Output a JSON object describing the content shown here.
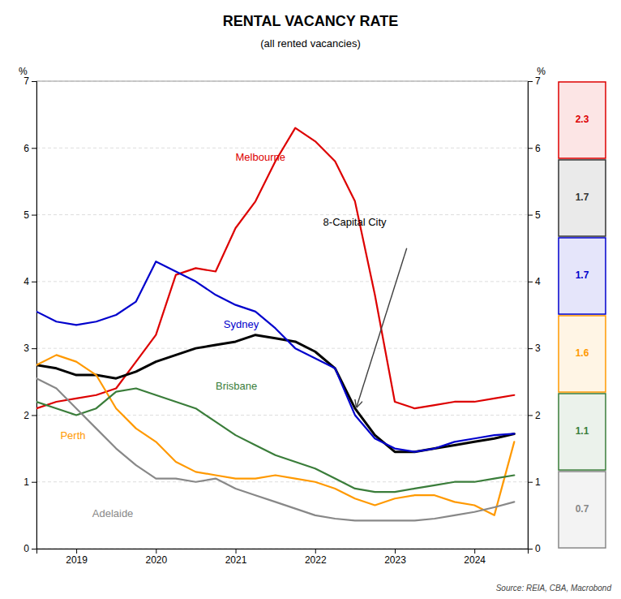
{
  "chart_data": {
    "type": "line",
    "title": "RENTAL VACANCY RATE",
    "subtitle": "(all rented vacancies)",
    "source": "Source: REIA, CBA, Macrobond",
    "ylabel": "%",
    "y2label": "%",
    "x": [
      2018.5,
      2018.75,
      2019.0,
      2019.25,
      2019.5,
      2019.75,
      2020.0,
      2020.25,
      2020.5,
      2020.75,
      2021.0,
      2021.25,
      2021.5,
      2021.75,
      2022.0,
      2022.25,
      2022.5,
      2022.75,
      2023.0,
      2023.25,
      2023.5,
      2023.75,
      2024.0,
      2024.25,
      2024.5
    ],
    "xlim": [
      2018.5,
      2024.67
    ],
    "xticks": [
      2019,
      2020,
      2021,
      2022,
      2023,
      2024
    ],
    "ylim": [
      0,
      7
    ],
    "yticks": [
      0,
      1,
      2,
      3,
      4,
      5,
      6,
      7
    ],
    "y2lim": [
      0,
      7
    ],
    "y2ticks": [
      0,
      1,
      2,
      3,
      4,
      5,
      6,
      7
    ],
    "grid": true,
    "series": [
      {
        "name": "Melbourne",
        "color": "#dd0000",
        "values": [
          2.1,
          2.2,
          2.25,
          2.3,
          2.4,
          2.8,
          3.2,
          4.1,
          4.2,
          4.15,
          4.8,
          5.2,
          5.8,
          6.3,
          6.1,
          5.8,
          5.2,
          3.8,
          2.2,
          2.1,
          2.15,
          2.2,
          2.2,
          2.25,
          2.3
        ]
      },
      {
        "name": "8-Capital City",
        "color": "#000000",
        "values": [
          2.75,
          2.7,
          2.6,
          2.6,
          2.55,
          2.65,
          2.8,
          2.9,
          3.0,
          3.05,
          3.1,
          3.2,
          3.15,
          3.1,
          2.95,
          2.7,
          2.1,
          1.7,
          1.45,
          1.45,
          1.5,
          1.55,
          1.6,
          1.65,
          1.72
        ]
      },
      {
        "name": "Sydney",
        "color": "#0000cc",
        "values": [
          3.55,
          3.4,
          3.35,
          3.4,
          3.5,
          3.7,
          4.3,
          4.15,
          4.0,
          3.8,
          3.65,
          3.55,
          3.3,
          3.0,
          2.85,
          2.7,
          2.0,
          1.65,
          1.5,
          1.45,
          1.5,
          1.6,
          1.65,
          1.7,
          1.72
        ]
      },
      {
        "name": "Perth",
        "color": "#ff9900",
        "values": [
          2.75,
          2.9,
          2.8,
          2.6,
          2.1,
          1.8,
          1.6,
          1.3,
          1.15,
          1.1,
          1.05,
          1.05,
          1.1,
          1.05,
          1.0,
          0.9,
          0.75,
          0.65,
          0.75,
          0.8,
          0.8,
          0.7,
          0.65,
          0.5,
          1.6
        ]
      },
      {
        "name": "Brisbane",
        "color": "#3a7d3a",
        "values": [
          2.2,
          2.1,
          2.0,
          2.1,
          2.35,
          2.4,
          2.3,
          2.2,
          2.1,
          1.9,
          1.7,
          1.55,
          1.4,
          1.3,
          1.2,
          1.05,
          0.9,
          0.85,
          0.85,
          0.9,
          0.95,
          1.0,
          1.0,
          1.05,
          1.1
        ]
      },
      {
        "name": "Adelaide",
        "color": "#888888",
        "values": [
          2.55,
          2.4,
          2.1,
          1.8,
          1.5,
          1.25,
          1.05,
          1.05,
          1.0,
          1.05,
          0.9,
          0.8,
          0.7,
          0.6,
          0.5,
          0.45,
          0.42,
          0.42,
          0.42,
          0.42,
          0.45,
          0.5,
          0.55,
          0.62,
          0.7
        ]
      }
    ],
    "annotations": [
      {
        "text": "Melbourne",
        "x": 2021.0,
        "y": 5.85,
        "color": "#dd0000"
      },
      {
        "text": "8-Capital City",
        "x": 2022.1,
        "y": 4.88,
        "color": "#000000"
      },
      {
        "text": "Sydney",
        "x": 2020.85,
        "y": 3.35,
        "color": "#0000cc"
      },
      {
        "text": "Perth",
        "x": 2018.8,
        "y": 1.68,
        "color": "#ff9900"
      },
      {
        "text": "Brisbane",
        "x": 2020.75,
        "y": 2.42,
        "color": "#3a7d3a"
      },
      {
        "text": "Adelaide",
        "x": 2019.2,
        "y": 0.52,
        "color": "#888888"
      }
    ],
    "arrow": {
      "x": [
        2023.15,
        2022.52
      ],
      "y": [
        4.5,
        2.12
      ],
      "color": "#404040"
    },
    "boxes": [
      {
        "value": 2.3,
        "color": "#dd0000"
      },
      {
        "value": 1.7,
        "color": "#333333"
      },
      {
        "value": 1.7,
        "color": "#0000cc"
      },
      {
        "value": 1.6,
        "color": "#ff9900"
      },
      {
        "value": 1.1,
        "color": "#3a7d3a"
      },
      {
        "value": 0.7,
        "color": "#888888"
      }
    ]
  }
}
